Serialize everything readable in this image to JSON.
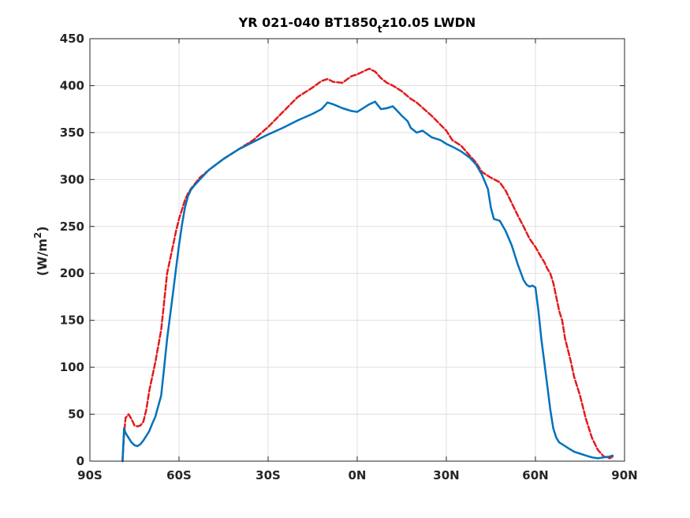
{
  "chart_data": {
    "type": "line",
    "title_main": "YR 021-040 BT1850",
    "title_sub": "t",
    "title_tail": "z10.05 LWDN",
    "ylabel_main": "(W/m",
    "ylabel_sup": "2",
    "ylabel_close": ")",
    "xlim": [
      -90,
      90
    ],
    "ylim": [
      0,
      450
    ],
    "grid": true,
    "xticks": [
      {
        "value": -90,
        "label": "90S"
      },
      {
        "value": -60,
        "label": "60S"
      },
      {
        "value": -30,
        "label": "30S"
      },
      {
        "value": 0,
        "label": "0N"
      },
      {
        "value": 30,
        "label": "30N"
      },
      {
        "value": 60,
        "label": "60N"
      },
      {
        "value": 90,
        "label": "90N"
      }
    ],
    "yticks": [
      {
        "value": 0,
        "label": "0"
      },
      {
        "value": 50,
        "label": "50"
      },
      {
        "value": 100,
        "label": "100"
      },
      {
        "value": 150,
        "label": "150"
      },
      {
        "value": 200,
        "label": "200"
      },
      {
        "value": 250,
        "label": "250"
      },
      {
        "value": 300,
        "label": "300"
      },
      {
        "value": 350,
        "label": "350"
      },
      {
        "value": 400,
        "label": "400"
      },
      {
        "value": 450,
        "label": "450"
      }
    ],
    "series": [
      {
        "color": "#e41a1c",
        "style": "dashed",
        "x": [
          -79,
          -78.5,
          -78,
          -77,
          -76,
          -75,
          -74,
          -73,
          -72,
          -71,
          -70,
          -68,
          -66,
          -65,
          -64,
          -63,
          -62,
          -61,
          -60,
          -59,
          -58,
          -57,
          -56,
          -55,
          -53,
          -50,
          -45,
          -40,
          -35,
          -30,
          -25,
          -20,
          -15,
          -12,
          -10,
          -8,
          -5,
          -2,
          0,
          2,
          4,
          6,
          8,
          10,
          12,
          15,
          18,
          20,
          25,
          30,
          32,
          35,
          38,
          40,
          42,
          45,
          48,
          50,
          52,
          54,
          56,
          58,
          60,
          62,
          63,
          64,
          65,
          66,
          67,
          68,
          69,
          70,
          71,
          72,
          73,
          75,
          77,
          79,
          81,
          83,
          85,
          86
        ],
        "values": [
          0,
          28,
          46,
          50,
          45,
          38,
          37,
          38,
          42,
          55,
          75,
          105,
          140,
          170,
          200,
          215,
          230,
          245,
          258,
          268,
          278,
          285,
          290,
          294,
          302,
          310,
          322,
          332,
          342,
          356,
          372,
          388,
          398,
          405,
          407,
          404,
          403,
          410,
          412,
          415,
          418,
          415,
          408,
          403,
          400,
          394,
          386,
          382,
          368,
          352,
          342,
          336,
          325,
          318,
          308,
          302,
          297,
          288,
          275,
          262,
          250,
          237,
          228,
          217,
          212,
          205,
          200,
          190,
          175,
          160,
          150,
          130,
          118,
          105,
          90,
          70,
          45,
          25,
          12,
          5,
          3,
          5
        ]
      },
      {
        "color": "#0072bd",
        "style": "solid",
        "x": [
          -79,
          -78.5,
          -78,
          -77,
          -76,
          -75,
          -74,
          -73,
          -72,
          -71,
          -70,
          -69,
          -68,
          -66,
          -65,
          -64,
          -63,
          -62,
          -61,
          -60,
          -59,
          -58,
          -57,
          -56,
          -55,
          -53,
          -50,
          -45,
          -40,
          -35,
          -30,
          -25,
          -20,
          -15,
          -12,
          -10,
          -8,
          -5,
          -2,
          0,
          2,
          4,
          6,
          8,
          10,
          12,
          15,
          17,
          18,
          20,
          22,
          25,
          28,
          30,
          32,
          35,
          38,
          40,
          42,
          44,
          45,
          46,
          48,
          50,
          52,
          54,
          56,
          57,
          58,
          59,
          60,
          61,
          62,
          63,
          64,
          65,
          66,
          67,
          68,
          69,
          70,
          71,
          72,
          73,
          75,
          77,
          79,
          81,
          83,
          85,
          86
        ],
        "values": [
          0,
          35,
          30,
          25,
          20,
          17,
          16,
          18,
          22,
          27,
          32,
          40,
          47,
          70,
          100,
          130,
          155,
          180,
          205,
          230,
          252,
          270,
          282,
          289,
          293,
          300,
          310,
          322,
          332,
          340,
          348,
          355,
          363,
          370,
          375,
          382,
          380,
          376,
          373,
          372,
          376,
          380,
          383,
          375,
          376,
          378,
          368,
          362,
          355,
          350,
          352,
          345,
          342,
          338,
          335,
          330,
          323,
          316,
          305,
          290,
          270,
          258,
          256,
          245,
          230,
          210,
          193,
          188,
          186,
          187,
          185,
          160,
          130,
          105,
          80,
          55,
          35,
          25,
          20,
          18,
          16,
          14,
          12,
          10,
          8,
          6,
          4,
          3,
          4,
          5,
          6
        ]
      }
    ]
  }
}
